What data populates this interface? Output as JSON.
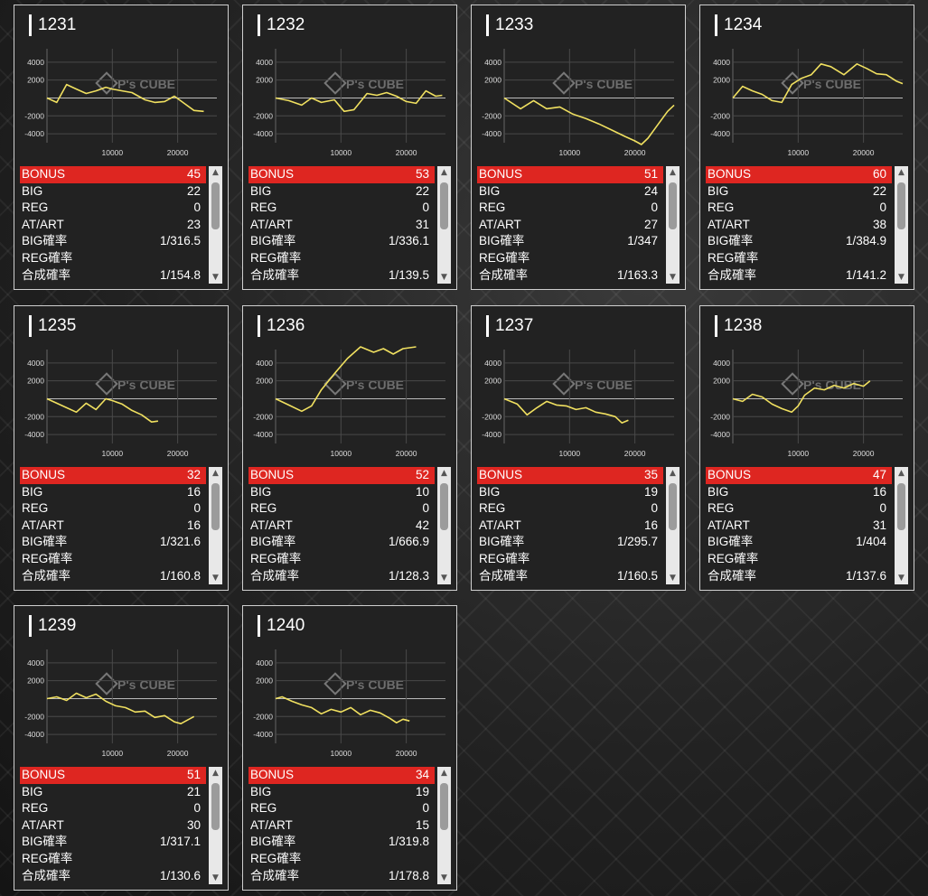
{
  "colors": {
    "line": "#f0e060",
    "bonus_bar": "#de2621",
    "grid": "#666666"
  },
  "chart_axis": {
    "y_ticks": [
      "4000",
      "2000",
      "-2000",
      "-4000"
    ],
    "x_ticks": [
      "10000",
      "20000"
    ],
    "watermark": "P's CUBE"
  },
  "machines": [
    {
      "id": "1231",
      "bonus": "45",
      "big": "22",
      "reg": "0",
      "at_art": "23",
      "big_rate": "1/316.5",
      "reg_rate": "",
      "total_rate": "1/154.8",
      "chart_data": {
        "type": "line",
        "xlim": [
          0,
          26000
        ],
        "ylim": [
          -5000,
          5500
        ],
        "x": [
          0,
          1500,
          3000,
          4500,
          6000,
          7500,
          9000,
          10000,
          11500,
          13000,
          15000,
          16500,
          18000,
          19500,
          21000,
          22500,
          24000
        ],
        "y": [
          0,
          -500,
          1500,
          1000,
          500,
          800,
          1200,
          1000,
          800,
          600,
          -200,
          -500,
          -400,
          200,
          -600,
          -1400,
          -1500
        ]
      }
    },
    {
      "id": "1232",
      "bonus": "53",
      "big": "22",
      "reg": "0",
      "at_art": "31",
      "big_rate": "1/336.1",
      "reg_rate": "",
      "total_rate": "1/139.5",
      "chart_data": {
        "type": "line",
        "xlim": [
          0,
          26000
        ],
        "ylim": [
          -5000,
          5500
        ],
        "x": [
          0,
          2000,
          4000,
          5500,
          7000,
          9000,
          10500,
          12000,
          14000,
          15500,
          17000,
          18500,
          20000,
          21500,
          23000,
          24500,
          25500
        ],
        "y": [
          0,
          -300,
          -800,
          0,
          -500,
          -200,
          -1500,
          -1300,
          500,
          300,
          600,
          200,
          -400,
          -600,
          800,
          200,
          300
        ]
      }
    },
    {
      "id": "1233",
      "bonus": "51",
      "big": "24",
      "reg": "0",
      "at_art": "27",
      "big_rate": "1/347",
      "reg_rate": "",
      "total_rate": "1/163.3",
      "chart_data": {
        "type": "line",
        "xlim": [
          0,
          26000
        ],
        "ylim": [
          -5000,
          5500
        ],
        "x": [
          0,
          2500,
          4500,
          6500,
          8500,
          10500,
          12500,
          14500,
          16500,
          18500,
          20000,
          21000,
          22000,
          23500,
          25000,
          26000
        ],
        "y": [
          0,
          -1200,
          -300,
          -1200,
          -1000,
          -1800,
          -2300,
          -2900,
          -3600,
          -4300,
          -4800,
          -5200,
          -4500,
          -3000,
          -1500,
          -800
        ]
      }
    },
    {
      "id": "1234",
      "bonus": "60",
      "big": "22",
      "reg": "0",
      "at_art": "38",
      "big_rate": "1/384.9",
      "reg_rate": "",
      "total_rate": "1/141.2",
      "chart_data": {
        "type": "line",
        "xlim": [
          0,
          26000
        ],
        "ylim": [
          -5000,
          5500
        ],
        "x": [
          0,
          1500,
          3000,
          4500,
          6000,
          7500,
          9000,
          10500,
          12000,
          13500,
          15000,
          17000,
          19000,
          20500,
          22000,
          23500,
          25000,
          26000
        ],
        "y": [
          0,
          1300,
          800,
          400,
          -300,
          -500,
          1500,
          2200,
          2600,
          3800,
          3500,
          2600,
          3800,
          3300,
          2700,
          2600,
          1900,
          1600
        ]
      }
    },
    {
      "id": "1235",
      "bonus": "32",
      "big": "16",
      "reg": "0",
      "at_art": "16",
      "big_rate": "1/321.6",
      "reg_rate": "",
      "total_rate": "1/160.8",
      "chart_data": {
        "type": "line",
        "xlim": [
          0,
          26000
        ],
        "ylim": [
          -5000,
          5500
        ],
        "x": [
          0,
          1500,
          3000,
          4500,
          6000,
          7500,
          9000,
          10000,
          11500,
          13000,
          14500,
          16000,
          17000
        ],
        "y": [
          0,
          -500,
          -1000,
          -1500,
          -500,
          -1200,
          0,
          -200,
          -600,
          -1300,
          -1800,
          -2600,
          -2500
        ]
      }
    },
    {
      "id": "1236",
      "bonus": "52",
      "big": "10",
      "reg": "0",
      "at_art": "42",
      "big_rate": "1/666.9",
      "reg_rate": "",
      "total_rate": "1/128.3",
      "chart_data": {
        "type": "line",
        "xlim": [
          0,
          26000
        ],
        "ylim": [
          -5000,
          5500
        ],
        "x": [
          0,
          2000,
          4000,
          5500,
          7000,
          9000,
          11000,
          13000,
          15000,
          16500,
          18000,
          19500,
          20500,
          21500
        ],
        "y": [
          0,
          -700,
          -1400,
          -800,
          1000,
          2800,
          4500,
          5800,
          5200,
          5600,
          5000,
          5600,
          5700,
          5800
        ]
      }
    },
    {
      "id": "1237",
      "bonus": "35",
      "big": "19",
      "reg": "0",
      "at_art": "16",
      "big_rate": "1/295.7",
      "reg_rate": "",
      "total_rate": "1/160.5",
      "chart_data": {
        "type": "line",
        "xlim": [
          0,
          26000
        ],
        "ylim": [
          -5000,
          5500
        ],
        "x": [
          0,
          2000,
          3500,
          5000,
          6500,
          8000,
          9500,
          11000,
          12500,
          14000,
          15500,
          17000,
          18000,
          19000
        ],
        "y": [
          0,
          -600,
          -1800,
          -1000,
          -300,
          -700,
          -800,
          -1200,
          -1000,
          -1500,
          -1700,
          -2000,
          -2700,
          -2400
        ]
      }
    },
    {
      "id": "1238",
      "bonus": "47",
      "big": "16",
      "reg": "0",
      "at_art": "31",
      "big_rate": "1/404",
      "reg_rate": "",
      "total_rate": "1/137.6",
      "chart_data": {
        "type": "line",
        "xlim": [
          0,
          26000
        ],
        "ylim": [
          -5000,
          5500
        ],
        "x": [
          0,
          1500,
          3000,
          4500,
          6000,
          7500,
          9000,
          10000,
          11000,
          12500,
          14000,
          15500,
          17000,
          18500,
          20000,
          21000
        ],
        "y": [
          0,
          -300,
          500,
          200,
          -600,
          -1100,
          -1500,
          -800,
          400,
          1200,
          1000,
          1500,
          1200,
          1700,
          1400,
          2000
        ]
      }
    },
    {
      "id": "1239",
      "bonus": "51",
      "big": "21",
      "reg": "0",
      "at_art": "30",
      "big_rate": "1/317.1",
      "reg_rate": "",
      "total_rate": "1/130.6",
      "chart_data": {
        "type": "line",
        "xlim": [
          0,
          26000
        ],
        "ylim": [
          -5000,
          5500
        ],
        "x": [
          0,
          1500,
          3000,
          4500,
          6000,
          7500,
          9000,
          10500,
          12000,
          13500,
          15000,
          16500,
          18000,
          19500,
          20500,
          21500,
          22500
        ],
        "y": [
          0,
          200,
          -200,
          600,
          100,
          500,
          -300,
          -800,
          -1000,
          -1500,
          -1400,
          -2100,
          -1900,
          -2600,
          -2800,
          -2400,
          -2000
        ]
      }
    },
    {
      "id": "1240",
      "bonus": "34",
      "big": "19",
      "reg": "0",
      "at_art": "15",
      "big_rate": "1/319.8",
      "reg_rate": "",
      "total_rate": "1/178.8",
      "chart_data": {
        "type": "line",
        "xlim": [
          0,
          26000
        ],
        "ylim": [
          -5000,
          5500
        ],
        "x": [
          0,
          1000,
          2500,
          4000,
          5500,
          7000,
          8500,
          10000,
          11500,
          13000,
          14500,
          16000,
          17500,
          18500,
          19500,
          20500
        ],
        "y": [
          0,
          200,
          -300,
          -700,
          -1000,
          -1700,
          -1200,
          -1500,
          -1000,
          -1800,
          -1300,
          -1600,
          -2200,
          -2700,
          -2300,
          -2500
        ]
      }
    }
  ]
}
